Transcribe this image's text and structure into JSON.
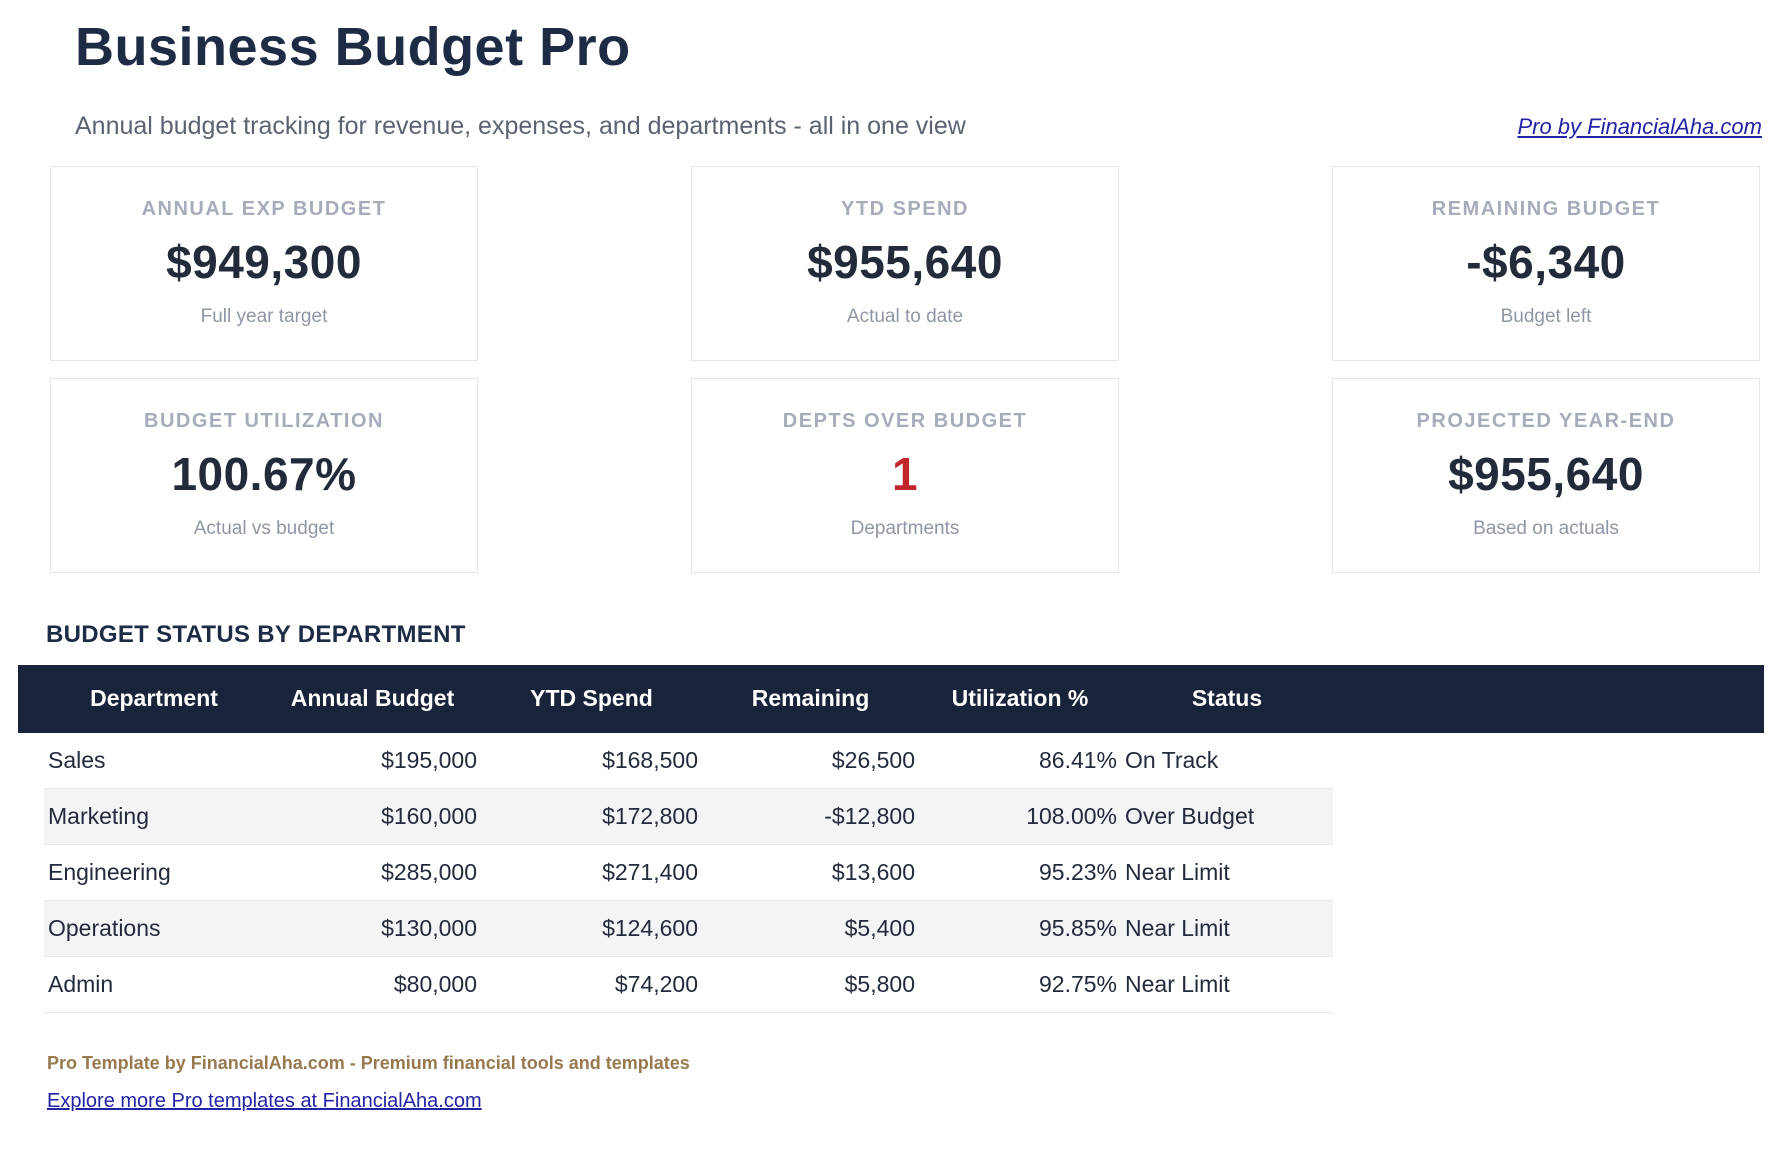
{
  "header": {
    "title": "Business Budget Pro",
    "subtitle": "Annual budget tracking for revenue, expenses, and departments - all in one view",
    "pro_link": "Pro by FinancialAha.com"
  },
  "kpi_cards": [
    {
      "label": "ANNUAL EXP BUDGET",
      "value": "$949,300",
      "subtitle": "Full year target"
    },
    {
      "label": "YTD SPEND",
      "value": "$955,640",
      "subtitle": "Actual to date"
    },
    {
      "label": "REMAINING BUDGET",
      "value": "-$6,340",
      "subtitle": "Budget left"
    },
    {
      "label": "BUDGET UTILIZATION",
      "value": "100.67%",
      "subtitle": "Actual vs budget"
    },
    {
      "label": "DEPTS OVER BUDGET",
      "value": "1",
      "subtitle": "Departments"
    },
    {
      "label": "PROJECTED YEAR-END",
      "value": "$955,640",
      "subtitle": "Based on actuals"
    }
  ],
  "table": {
    "section_title": "BUDGET STATUS BY DEPARTMENT",
    "columns": [
      "Department",
      "Annual Budget",
      "YTD Spend",
      "Remaining",
      "Utilization %",
      "Status"
    ],
    "rows": [
      {
        "department": "Sales",
        "annual_budget": "$195,000",
        "ytd_spend": "$168,500",
        "remaining": "$26,500",
        "utilization": "86.41%",
        "status": "On Track"
      },
      {
        "department": "Marketing",
        "annual_budget": "$160,000",
        "ytd_spend": "$172,800",
        "remaining": "-$12,800",
        "utilization": "108.00%",
        "status": "Over Budget"
      },
      {
        "department": "Engineering",
        "annual_budget": "$285,000",
        "ytd_spend": "$271,400",
        "remaining": "$13,600",
        "utilization": "95.23%",
        "status": "Near Limit"
      },
      {
        "department": "Operations",
        "annual_budget": "$130,000",
        "ytd_spend": "$124,600",
        "remaining": "$5,400",
        "utilization": "95.85%",
        "status": "Near Limit"
      },
      {
        "department": "Admin",
        "annual_budget": "$80,000",
        "ytd_spend": "$74,200",
        "remaining": "$5,800",
        "utilization": "92.75%",
        "status": "Near Limit"
      }
    ]
  },
  "footer": {
    "credit": "Pro Template by FinancialAha.com - Premium financial tools and templates",
    "link": "Explore more Pro templates at FinancialAha.com"
  },
  "colors": {
    "accent_navy": "#1e2b45",
    "value_ink": "#232b3b",
    "label_gray": "#a6acb9",
    "card_subtitle_gray": "#8f96a4",
    "page_subtitle_gray": "#5b6371",
    "table_header_bg": "#192339",
    "table_header_text": "#ffffff",
    "stripe": "#f3f4f6",
    "row_border": "#e5e7eb",
    "card_border": "#e4e6ea",
    "alert_red": "#c0262b",
    "footer_gold": "#97794e",
    "link_blue": "#2323a5"
  }
}
